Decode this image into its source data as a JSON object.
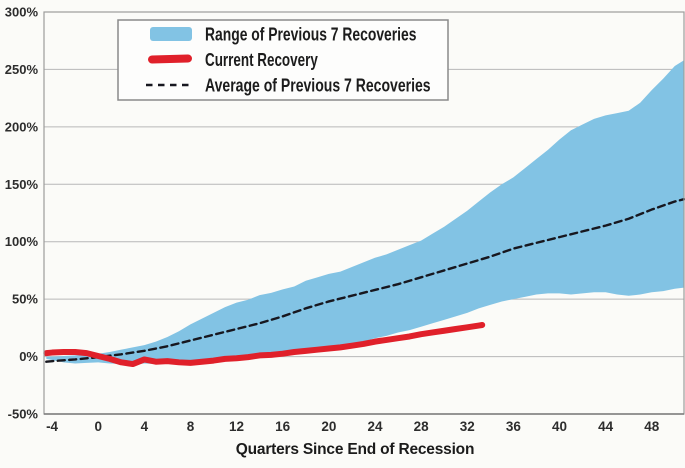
{
  "figure": {
    "background": "#fbfbf8"
  },
  "colors": {
    "band": "#82C3E4",
    "current": "#E0202A",
    "average": "#17171F",
    "grid": "#B8B8B8",
    "border": "#9C9C9C",
    "axis_bottom": "#7A7A7A",
    "tick_text": "#2d2d2d",
    "legend_border": "#8A8A8A",
    "legend_fill": "#FDFDFC"
  },
  "chart_data": {
    "type": "area",
    "title": "",
    "xlabel": "Quarters Since End of Recession",
    "ylabel": "",
    "xlim": [
      -4.7,
      50.8
    ],
    "ylim": [
      -50,
      300
    ],
    "x_ticks": [
      -4,
      0,
      4,
      8,
      12,
      16,
      20,
      24,
      28,
      32,
      36,
      40,
      44,
      48
    ],
    "y_ticks": [
      -50,
      0,
      50,
      100,
      150,
      200,
      250,
      300
    ],
    "y_tick_suffix": "%",
    "grid": "horizontal-only",
    "legend_position": "top-left-inside",
    "draw_order": [
      0,
      2,
      1
    ],
    "series": [
      {
        "name": "Range of Previous 7 Recoveries",
        "type": "band",
        "color": "#82C3E4",
        "upper": [
          [
            -4.5,
            0
          ],
          [
            -4,
            0
          ],
          [
            -3,
            0.5
          ],
          [
            -2,
            1
          ],
          [
            -1,
            1.5
          ],
          [
            0,
            2.5
          ],
          [
            1,
            4
          ],
          [
            2,
            6
          ],
          [
            3,
            8
          ],
          [
            4,
            10
          ],
          [
            5,
            13
          ],
          [
            6,
            17
          ],
          [
            7,
            22
          ],
          [
            8,
            28
          ],
          [
            9,
            33
          ],
          [
            10,
            38
          ],
          [
            11,
            43
          ],
          [
            12,
            47
          ],
          [
            13,
            49.5
          ],
          [
            14,
            53.5
          ],
          [
            15,
            55.5
          ],
          [
            16,
            58.5
          ],
          [
            17,
            61
          ],
          [
            18,
            66
          ],
          [
            19,
            69
          ],
          [
            20,
            72
          ],
          [
            21,
            74
          ],
          [
            22,
            78
          ],
          [
            23,
            82
          ],
          [
            24,
            86
          ],
          [
            25,
            89
          ],
          [
            26,
            93
          ],
          [
            27,
            97
          ],
          [
            28,
            101
          ],
          [
            29,
            107
          ],
          [
            30,
            113
          ],
          [
            31,
            120
          ],
          [
            32,
            127
          ],
          [
            33,
            135
          ],
          [
            34,
            143
          ],
          [
            35,
            150
          ],
          [
            36,
            156
          ],
          [
            37,
            164
          ],
          [
            38,
            172
          ],
          [
            39,
            180
          ],
          [
            40,
            189
          ],
          [
            41,
            197
          ],
          [
            42,
            202
          ],
          [
            43,
            207
          ],
          [
            44,
            210
          ],
          [
            45,
            212
          ],
          [
            46,
            214
          ],
          [
            47,
            221
          ],
          [
            48,
            232
          ],
          [
            49,
            242
          ],
          [
            50,
            253
          ],
          [
            50.8,
            258
          ]
        ],
        "lower": [
          [
            -4.5,
            -2
          ],
          [
            -4,
            -3
          ],
          [
            -3,
            -5
          ],
          [
            -2,
            -6
          ],
          [
            -1,
            -5.5
          ],
          [
            0,
            -5
          ],
          [
            1,
            -6
          ],
          [
            2,
            -6.5
          ],
          [
            3,
            -7
          ],
          [
            4,
            -6
          ],
          [
            5,
            -6.5
          ],
          [
            6,
            -6
          ],
          [
            7,
            -6.5
          ],
          [
            8,
            -7
          ],
          [
            9,
            -6
          ],
          [
            10,
            -5
          ],
          [
            11,
            -4
          ],
          [
            12,
            -3
          ],
          [
            13,
            -2
          ],
          [
            14,
            -1
          ],
          [
            15,
            0
          ],
          [
            16,
            1
          ],
          [
            17,
            2
          ],
          [
            18,
            3.5
          ],
          [
            19,
            5
          ],
          [
            20,
            7
          ],
          [
            21,
            9
          ],
          [
            22,
            11
          ],
          [
            23,
            13
          ],
          [
            24,
            16
          ],
          [
            25,
            18
          ],
          [
            26,
            21
          ],
          [
            27,
            23
          ],
          [
            28,
            26
          ],
          [
            29,
            29
          ],
          [
            30,
            32
          ],
          [
            31,
            35
          ],
          [
            32,
            38
          ],
          [
            33,
            42
          ],
          [
            34,
            45
          ],
          [
            35,
            48
          ],
          [
            36,
            50
          ],
          [
            37,
            52
          ],
          [
            38,
            54
          ],
          [
            39,
            55
          ],
          [
            40,
            55
          ],
          [
            41,
            54
          ],
          [
            42,
            55
          ],
          [
            43,
            56
          ],
          [
            44,
            56
          ],
          [
            45,
            54
          ],
          [
            46,
            53
          ],
          [
            47,
            54
          ],
          [
            48,
            56
          ],
          [
            49,
            57
          ],
          [
            50,
            59
          ],
          [
            50.8,
            60
          ]
        ]
      },
      {
        "name": "Current Recovery",
        "type": "line",
        "color": "#E0202A",
        "width": 6,
        "points": [
          [
            -4.5,
            3
          ],
          [
            -4,
            3.5
          ],
          [
            -3,
            4
          ],
          [
            -2,
            4
          ],
          [
            -1,
            3
          ],
          [
            0,
            0.5
          ],
          [
            1,
            -2
          ],
          [
            2,
            -5
          ],
          [
            3,
            -6.5
          ],
          [
            4,
            -2.5
          ],
          [
            5,
            -4.5
          ],
          [
            6,
            -4
          ],
          [
            7,
            -5
          ],
          [
            8,
            -5.5
          ],
          [
            9,
            -4.5
          ],
          [
            10,
            -3.5
          ],
          [
            11,
            -2
          ],
          [
            12,
            -1.5
          ],
          [
            13,
            -0.5
          ],
          [
            14,
            1
          ],
          [
            15,
            1.5
          ],
          [
            16,
            2.5
          ],
          [
            17,
            4
          ],
          [
            18,
            5
          ],
          [
            19,
            6
          ],
          [
            20,
            7
          ],
          [
            21,
            8
          ],
          [
            22,
            9.5
          ],
          [
            23,
            11
          ],
          [
            24,
            13
          ],
          [
            25,
            14.5
          ],
          [
            26,
            16
          ],
          [
            27,
            17.5
          ],
          [
            28,
            19.5
          ],
          [
            29,
            21
          ],
          [
            30,
            22.5
          ],
          [
            31,
            24
          ],
          [
            32,
            25.5
          ],
          [
            33,
            27
          ],
          [
            33.3,
            27.5
          ]
        ]
      },
      {
        "name": "Average of Previous 7 Recoveries",
        "type": "dashed",
        "color": "#17171F",
        "width": 2.4,
        "dash": [
          7,
          4.5
        ],
        "points": [
          [
            -4.5,
            -4.5
          ],
          [
            -4,
            -4
          ],
          [
            -2,
            -2.5
          ],
          [
            0,
            -0.5
          ],
          [
            2,
            2
          ],
          [
            4,
            5
          ],
          [
            6,
            9
          ],
          [
            8,
            14
          ],
          [
            10,
            19
          ],
          [
            12,
            24
          ],
          [
            14,
            29
          ],
          [
            16,
            35
          ],
          [
            18,
            42
          ],
          [
            20,
            48
          ],
          [
            22,
            53
          ],
          [
            24,
            58
          ],
          [
            26,
            63
          ],
          [
            28,
            69
          ],
          [
            30,
            75
          ],
          [
            32,
            81
          ],
          [
            34,
            87
          ],
          [
            36,
            94
          ],
          [
            38,
            99
          ],
          [
            40,
            104
          ],
          [
            42,
            109
          ],
          [
            44,
            114
          ],
          [
            46,
            120
          ],
          [
            48,
            128
          ],
          [
            50,
            135
          ],
          [
            50.8,
            137
          ]
        ]
      }
    ]
  }
}
